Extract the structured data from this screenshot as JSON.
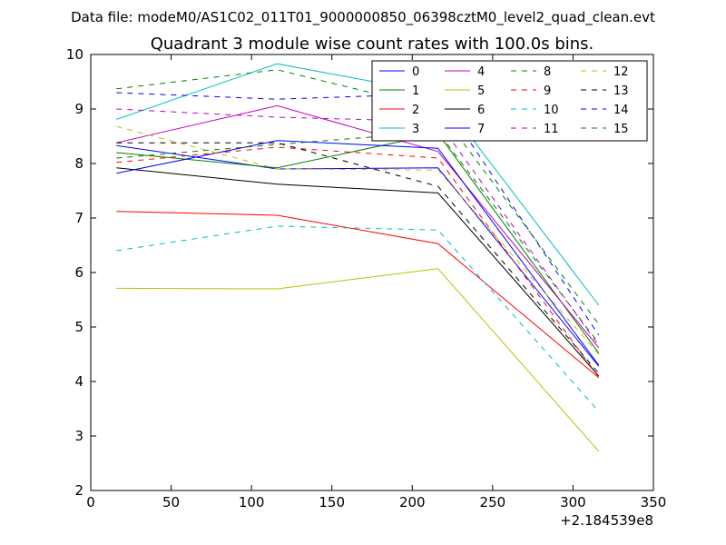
{
  "chart_data": {
    "type": "line",
    "suptitle": "Data file: modeM0/AS1C02_011T01_9000000850_06398cztM0_level2_quad_clean.evt",
    "title": "Quadrant 3 module wise count rates with 100.0s bins.",
    "xlabel": "",
    "ylabel": "",
    "xlim": [
      0,
      350
    ],
    "ylim": [
      2,
      10
    ],
    "xticks": [
      "0",
      "50",
      "100",
      "150",
      "200",
      "250",
      "300",
      "350"
    ],
    "yticks": [
      "2",
      "3",
      "4",
      "5",
      "6",
      "7",
      "8",
      "9",
      "10"
    ],
    "x_offset_label": "+2.184539e8",
    "x": [
      16,
      116,
      216,
      316
    ],
    "legend_position": "top-right",
    "grid": false,
    "series": [
      {
        "name": "0",
        "color": "#0000ff",
        "dash": "solid",
        "values": [
          8.33,
          7.9,
          7.92,
          4.28
        ]
      },
      {
        "name": "1",
        "color": "#008000",
        "dash": "solid",
        "values": [
          8.2,
          7.92,
          8.55,
          4.52
        ]
      },
      {
        "name": "2",
        "color": "#ff0000",
        "dash": "solid",
        "values": [
          7.12,
          7.05,
          6.53,
          4.07
        ]
      },
      {
        "name": "3",
        "color": "#00bfbf",
        "dash": "solid",
        "values": [
          8.81,
          9.83,
          9.28,
          5.4
        ]
      },
      {
        "name": "4",
        "color": "#bf00bf",
        "dash": "solid",
        "values": [
          8.38,
          9.06,
          8.22,
          4.62
        ]
      },
      {
        "name": "5",
        "color": "#bfbf00",
        "dash": "solid",
        "values": [
          5.71,
          5.7,
          6.07,
          2.72
        ]
      },
      {
        "name": "6",
        "color": "#000000",
        "dash": "solid",
        "values": [
          7.92,
          7.62,
          7.46,
          4.1
        ]
      },
      {
        "name": "7",
        "color": "#0000ff",
        "dash": "solid",
        "values": [
          7.82,
          8.42,
          8.28,
          4.3
        ]
      },
      {
        "name": "8",
        "color": "#008000",
        "dash": "dashed",
        "values": [
          8.1,
          8.35,
          8.58,
          4.7
        ]
      },
      {
        "name": "9",
        "color": "#ff0000",
        "dash": "dashed",
        "values": [
          8.02,
          8.3,
          8.1,
          4.08
        ]
      },
      {
        "name": "10",
        "color": "#00bfbf",
        "dash": "dashed",
        "values": [
          6.4,
          6.85,
          6.78,
          3.45
        ]
      },
      {
        "name": "11",
        "color": "#bf00bf",
        "dash": "dashed",
        "values": [
          9.0,
          8.85,
          8.77,
          4.66
        ]
      },
      {
        "name": "12",
        "color": "#bfbf00",
        "dash": "dashed",
        "values": [
          8.68,
          7.9,
          7.88,
          4.5
        ]
      },
      {
        "name": "13",
        "color": "#000000",
        "dash": "dashed",
        "values": [
          8.38,
          8.38,
          7.58,
          4.15
        ]
      },
      {
        "name": "14",
        "color": "#0000ff",
        "dash": "dashed",
        "values": [
          9.3,
          9.18,
          9.28,
          4.85
        ]
      },
      {
        "name": "15",
        "color": "#008000",
        "dash": "dashed",
        "values": [
          9.37,
          9.72,
          9.0,
          5.05
        ]
      }
    ]
  }
}
